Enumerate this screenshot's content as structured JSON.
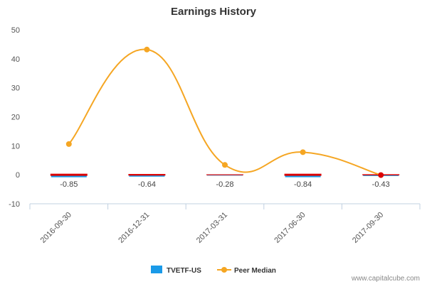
{
  "chart_data": {
    "type": "line",
    "title": "Earnings History",
    "categories": [
      "2016-09-30",
      "2016-12-31",
      "2017-03-31",
      "2017-06-30",
      "2017-09-30"
    ],
    "ylim": [
      -10,
      50
    ],
    "yticks": [
      -10,
      0,
      10,
      20,
      30,
      40,
      50
    ],
    "grid": false,
    "legend_position": "bottom",
    "series": [
      {
        "name": "TVETF-US",
        "kind": "bar",
        "color": "#1a9ae8",
        "values": [
          -0.85,
          -0.64,
          -0.28,
          -0.84,
          -0.43
        ],
        "data_labels": [
          "-0.85",
          "-0.64",
          "-0.28",
          "-0.84",
          "-0.43"
        ],
        "marker_color": "#dd0000"
      },
      {
        "name": "Peer Median",
        "kind": "line",
        "color": "#f5a623",
        "values": [
          10.6,
          43.2,
          3.4,
          7.8,
          -0.1
        ]
      }
    ]
  },
  "credit": "www.capitalcube.com"
}
